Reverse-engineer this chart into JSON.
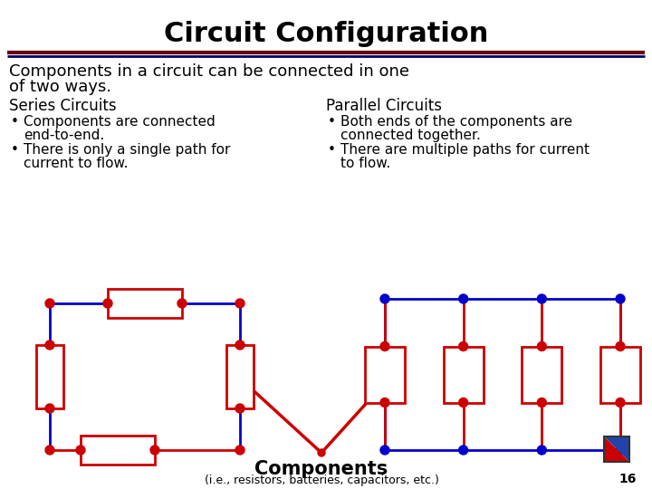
{
  "title": "Circuit Configuration",
  "subtitle_line1": "Components in a circuit can be connected in one",
  "subtitle_line2": "of two ways.",
  "series_label": "Series Circuits",
  "parallel_label": "Parallel Circuits",
  "bullet_s1_line1": "Components are connected",
  "bullet_s1_line2": "end-to-end.",
  "bullet_s2_line1": "There is only a single path for",
  "bullet_s2_line2": "current to flow.",
  "bullet_p1_line1": "Both ends of the components are",
  "bullet_p1_line2": "connected together.",
  "bullet_p2_line1": "There are multiple paths for current",
  "bullet_p2_line2": "to flow.",
  "bottom_label": "Components",
  "bottom_sublabel": "(i.e., resistors, batteries, capacitors, etc.)",
  "page_num": "16",
  "blue": "#0000CC",
  "red": "#CC0000",
  "darkred": "#6B0000",
  "darkblue": "#000066",
  "black": "#000000",
  "white": "#ffffff"
}
